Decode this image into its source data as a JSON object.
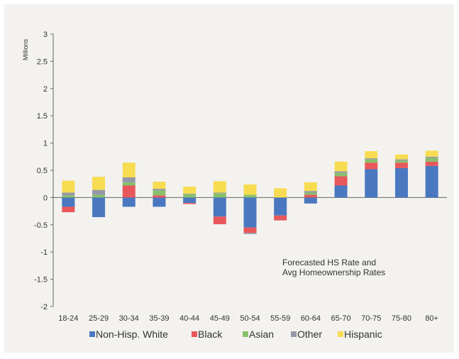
{
  "chart_data": {
    "type": "bar",
    "stacked": true,
    "categories": [
      "18-24",
      "25-29",
      "30-34",
      "35-39",
      "40-44",
      "45-49",
      "50-54",
      "55-59",
      "60-64",
      "65-70",
      "70-75",
      "75-80",
      "80+"
    ],
    "series": [
      {
        "name": "Non-Hisp. White",
        "color": "#4a78c0",
        "values": [
          -0.17,
          -0.36,
          -0.17,
          -0.17,
          -0.1,
          -0.35,
          -0.55,
          -0.33,
          -0.11,
          0.22,
          0.52,
          0.54,
          0.58
        ]
      },
      {
        "name": "Black",
        "color": "#e8585b",
        "values": [
          -0.1,
          0.0,
          0.22,
          0.04,
          -0.02,
          -0.14,
          -0.1,
          -0.09,
          0.05,
          0.17,
          0.12,
          0.1,
          0.08
        ]
      },
      {
        "name": "Asian",
        "color": "#88c06b",
        "values": [
          0.04,
          0.05,
          0.06,
          0.09,
          0.06,
          0.08,
          0.05,
          0.0,
          0.04,
          0.06,
          0.06,
          0.04,
          0.07
        ]
      },
      {
        "name": "Other",
        "color": "#9598a8",
        "values": [
          0.05,
          0.09,
          0.09,
          0.03,
          0.01,
          0.01,
          -0.02,
          0.0,
          0.03,
          0.03,
          0.02,
          0.02,
          0.02
        ]
      },
      {
        "name": "Hispanic",
        "color": "#f7dc52",
        "values": [
          0.22,
          0.24,
          0.27,
          0.13,
          0.13,
          0.21,
          0.19,
          0.17,
          0.16,
          0.18,
          0.13,
          0.09,
          0.11
        ]
      }
    ],
    "ylim": [
      -2,
      3
    ],
    "yticks": [
      "3",
      "2.5",
      "2",
      "1.5",
      "1",
      "0.5",
      "0",
      "-0.5",
      "-1",
      "-1.5",
      "-2"
    ],
    "ylabel": "Millions",
    "xlabel": "",
    "title": "",
    "annotation": [
      "Forecasted HS Rate and",
      "Avg Homeownership Rates"
    ],
    "legend_position": "bottom",
    "grid": false
  }
}
